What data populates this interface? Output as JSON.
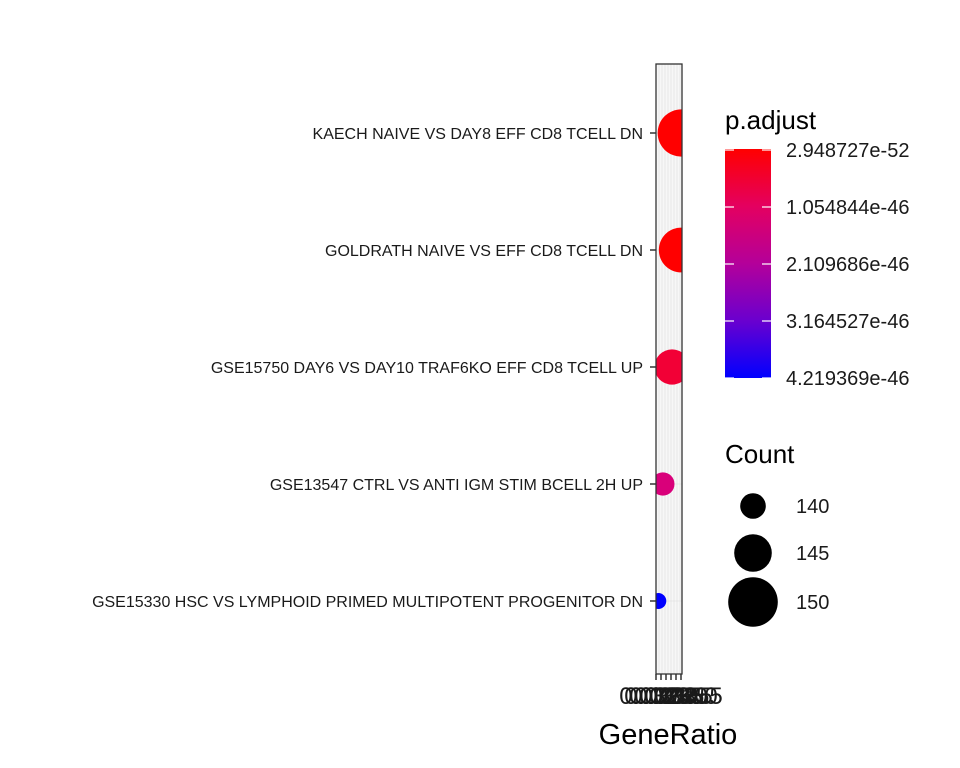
{
  "chart_data": {
    "type": "scatter",
    "title": "",
    "xlabel": "GeneRatio",
    "ylabel": "",
    "x_ticks": [
      "0.0325",
      "0.0330",
      "0.0335",
      "0.0340",
      "0.0345",
      "0.0350",
      "0.0355"
    ],
    "xlim": [
      0.0322,
      0.0356
    ],
    "points": [
      {
        "category": "KAECH NAIVE VS DAY8 EFF CD8 TCELL DN",
        "gene_ratio": 0.0355,
        "count": 152,
        "p_adjust": 2.948727e-52,
        "color": "#ff0000"
      },
      {
        "category": "GOLDRATH NAIVE VS EFF CD8 TCELL DN",
        "gene_ratio": 0.0355,
        "count": 151,
        "p_adjust": 1.5e-50,
        "color": "#ff0000"
      },
      {
        "category": "GSE15750 DAY6 VS DAY10 TRAF6KO EFF CD8 TCELL UP",
        "gene_ratio": 0.0343,
        "count": 147,
        "p_adjust": 4.5e-47,
        "color": "#f20036"
      },
      {
        "category": "GSE13547 CTRL VS ANTI IGM STIM BCELL 2H UP",
        "gene_ratio": 0.0331,
        "count": 142,
        "p_adjust": 1.6e-46,
        "color": "#d9007a"
      },
      {
        "category": "GSE15330 HSC VS LYMPHOID PRIMED MULTIPOTENT PROGENITOR DN",
        "gene_ratio": 0.0325,
        "count": 139,
        "p_adjust": 4.219369e-46,
        "color": "#0000ff"
      }
    ],
    "color_legend": {
      "title": "p.adjust",
      "labels": [
        "2.948727e-52",
        "1.054844e-46",
        "2.109686e-46",
        "3.164527e-46",
        "4.219369e-46"
      ],
      "gradient_colors": [
        "#ff0000",
        "#e40060",
        "#b4009a",
        "#6a00cf",
        "#0000ff"
      ]
    },
    "size_legend": {
      "title": "Count",
      "items": [
        {
          "label": "140",
          "value": 140
        },
        {
          "label": "145",
          "value": 145
        },
        {
          "label": "150",
          "value": 150
        }
      ]
    },
    "grid": true,
    "legend_position": "right"
  }
}
